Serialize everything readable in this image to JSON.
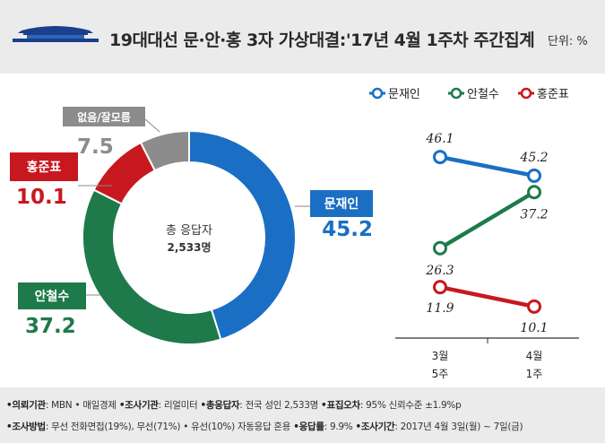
{
  "header": {
    "title": "19대대선 문·안·홍 3자 가상대결:'17년 4월 1주차 주간집계",
    "unit": "단위: %"
  },
  "chart_data": [
    {
      "type": "pie",
      "center_label": "총 응답자",
      "center_value": "2,533명",
      "slices": [
        {
          "name": "문재인",
          "value": 45.2,
          "color": "#1a6fc4"
        },
        {
          "name": "안철수",
          "value": 37.2,
          "color": "#1e7a4a"
        },
        {
          "name": "홍준표",
          "value": 10.1,
          "color": "#c8181f"
        },
        {
          "name": "없음/잘모름",
          "value": 7.5,
          "color": "#8c8c8c"
        }
      ]
    },
    {
      "type": "line",
      "categories": [
        [
          "3월",
          "5주"
        ],
        [
          "4월",
          "1주"
        ]
      ],
      "series": [
        {
          "name": "문재인",
          "values": [
            46.1,
            45.2
          ],
          "color": "#1a6fc4"
        },
        {
          "name": "안철수",
          "values": [
            26.3,
            37.2
          ],
          "color": "#1e7a4a"
        },
        {
          "name": "홍준표",
          "values": [
            11.9,
            10.1
          ],
          "color": "#c8181f"
        }
      ]
    }
  ],
  "footer": {
    "line1": [
      {
        "label": "•의뢰기관",
        "value": ": MBN • 매일경제  "
      },
      {
        "label": "•조사기관",
        "value": ": 리얼미터  "
      },
      {
        "label": "•총응답자",
        "value": ": 전국 성인 2,533명  "
      },
      {
        "label": "•표집오차",
        "value": ": 95% 신뢰수준 ±1.9%p"
      }
    ],
    "line2": [
      {
        "label": "•조사방법",
        "value": ": 무선 전화면접(19%), 무선(71%) • 유선(10%) 자동응답 혼용 "
      },
      {
        "label": "•응답률",
        "value": ": 9.9% "
      },
      {
        "label": "•조사기간",
        "value": ": 2017년 4월 3일(월) ~ 7일(금)"
      }
    ]
  }
}
